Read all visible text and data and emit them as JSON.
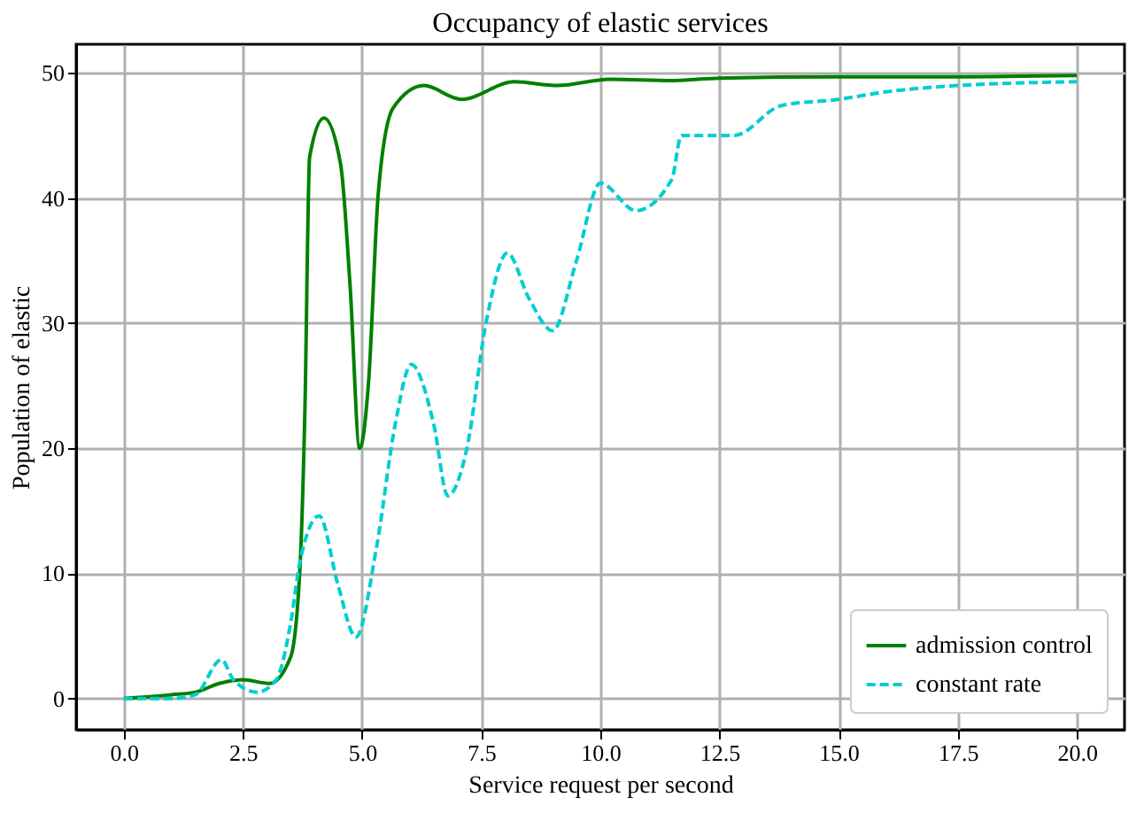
{
  "chart_data": {
    "type": "line",
    "title": "Occupancy of elastic services",
    "xlabel": "Service request per second",
    "ylabel": "Population of elastic",
    "xlim": [
      -1.0,
      21.0
    ],
    "ylim": [
      -2.5,
      52.3
    ],
    "xticks": [
      {
        "value": 0,
        "label": "0.0"
      },
      2.5,
      {
        "value": 5,
        "label": "5.0"
      },
      7.5,
      {
        "value": 10,
        "label": "10.0"
      },
      12.5,
      {
        "value": 15,
        "label": "15.0"
      },
      17.5,
      {
        "value": 20,
        "label": "20.0"
      }
    ],
    "yticks": [
      0,
      10,
      20,
      30,
      40,
      50
    ],
    "grid": true,
    "legend": "bottom right",
    "marker": "none",
    "series": [
      {
        "name": "admission control",
        "color": "#008000",
        "line_style": "solid",
        "x": [
          0,
          1.0,
          1.5,
          2.0,
          2.5,
          3.06,
          3.5,
          3.7,
          3.8,
          3.9,
          4.2,
          4.55,
          4.75,
          4.95,
          5.14,
          5.34,
          5.65,
          6.3,
          7.08,
          8.2,
          9.1,
          10.2,
          11.5,
          12.5,
          15,
          17.5,
          20
        ],
        "values": [
          0,
          0.3,
          0.5,
          1.2,
          1.5,
          1.2,
          3.3,
          10.7,
          23,
          43.3,
          46.4,
          42.7,
          32.9,
          20,
          25.5,
          40.4,
          47.2,
          49.0,
          47.9,
          49.3,
          49.0,
          49.5,
          49.4,
          49.6,
          49.7,
          49.7,
          49.8
        ]
      },
      {
        "name": "constant rate",
        "color": "#00ced1",
        "line_style": "dashed",
        "x": [
          0,
          1.0,
          1.5,
          2.05,
          2.3,
          2.8,
          3.2,
          3.5,
          3.7,
          4.1,
          4.5,
          4.87,
          5.3,
          5.7,
          6.03,
          6.5,
          6.8,
          7.2,
          7.6,
          8.05,
          8.5,
          9.0,
          9.5,
          10.0,
          10.75,
          11.5,
          11.7,
          12.8,
          13.8,
          15,
          16,
          17.5,
          20
        ],
        "values": [
          0,
          0,
          0.3,
          3.1,
          1.5,
          0.5,
          1.5,
          6,
          11,
          14.6,
          9,
          4.9,
          12,
          22,
          26.7,
          22,
          16.2,
          20,
          30,
          35.6,
          32,
          29.4,
          35,
          41.2,
          39.0,
          41.5,
          45,
          45,
          47.4,
          47.9,
          48.5,
          49,
          49.3
        ]
      }
    ]
  }
}
